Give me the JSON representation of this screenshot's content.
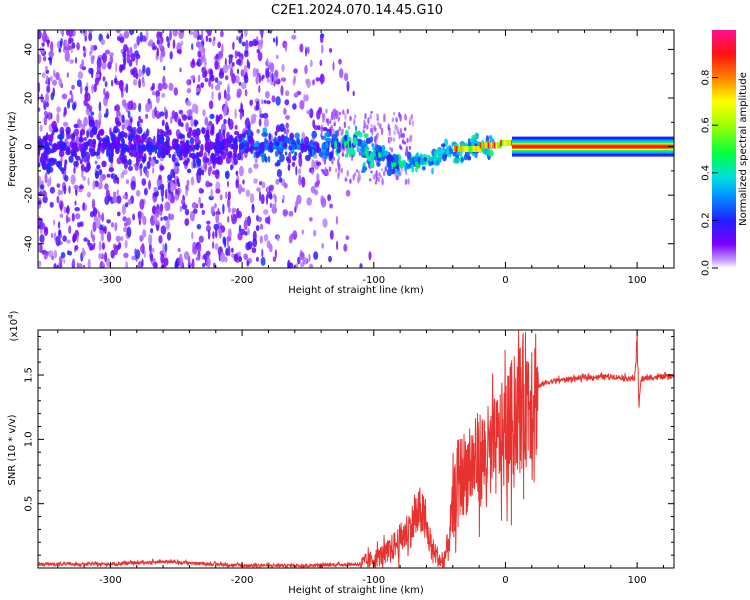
{
  "title": "C2E1.2024.070.14.45.G10",
  "colors": {
    "snr_line": "#e8322f",
    "axis": "#000000"
  },
  "chart_data": [
    {
      "type": "heatmap",
      "xlabel": "Height of straight line (km)",
      "ylabel": "Frequency (Hz)",
      "xlim": [
        -355,
        128
      ],
      "ylim": [
        -50,
        48
      ],
      "xticks": [
        -300,
        -200,
        -100,
        0,
        100
      ],
      "yticks": [
        -40,
        -20,
        0,
        20,
        40
      ],
      "colorbar": {
        "label": "Normalized spectral amplitude",
        "ticks": [
          "0.0",
          "0.2",
          "0.4",
          "0.6",
          "0.8"
        ],
        "range": [
          0,
          1
        ],
        "colormap": "rainbow (violet - blue - cyan - green - yellow - red - magenta)"
      },
      "features": [
        {
          "description": "scattered broadband noise",
          "x_range": [
            -355,
            -100
          ],
          "freq_range": [
            -50,
            48
          ],
          "amplitude": "0.05-0.2"
        },
        {
          "description": "narrowband signal, noisy",
          "x_range": [
            -200,
            -40
          ],
          "freq_center": [
            0,
            2,
            -5,
            -8,
            -2
          ],
          "amplitude": "0.2-0.5"
        },
        {
          "description": "stable carrier line",
          "x_range": [
            5,
            128
          ],
          "freq_center": 0,
          "amplitude": "0.85-1.0"
        }
      ]
    },
    {
      "type": "line",
      "xlabel": "Height of straight line (km)",
      "ylabel": "SNR (10 * v/v)",
      "yscale_label": "(x10",
      "yscale_exp": "4",
      "yscale_close": ")",
      "xlim": [
        -355,
        128
      ],
      "ylim": [
        0,
        1.85
      ],
      "xticks": [
        -300,
        -200,
        -100,
        0,
        100
      ],
      "yticks": [
        "0.5",
        "1.0",
        "1.5"
      ],
      "series": [
        {
          "x": [
            -355,
            -300,
            -260,
            -200,
            -150,
            -110,
            -100,
            -90,
            -80,
            -70,
            -64,
            -60,
            -56,
            -52,
            -48,
            -44,
            -40,
            -36,
            -30,
            -20,
            -10,
            0,
            10,
            20,
            30,
            40,
            60,
            80,
            98,
            100,
            101,
            103,
            110,
            128
          ],
          "y": [
            0.03,
            0.03,
            0.05,
            0.02,
            0.02,
            0.03,
            0.07,
            0.12,
            0.22,
            0.35,
            0.45,
            0.3,
            0.15,
            0.1,
            0.03,
            0.15,
            0.45,
            0.7,
            0.75,
            0.85,
            0.9,
            1.05,
            1.25,
            1.38,
            1.44,
            1.46,
            1.48,
            1.49,
            1.47,
            1.75,
            1.25,
            1.47,
            1.48,
            1.49
          ]
        }
      ]
    }
  ]
}
